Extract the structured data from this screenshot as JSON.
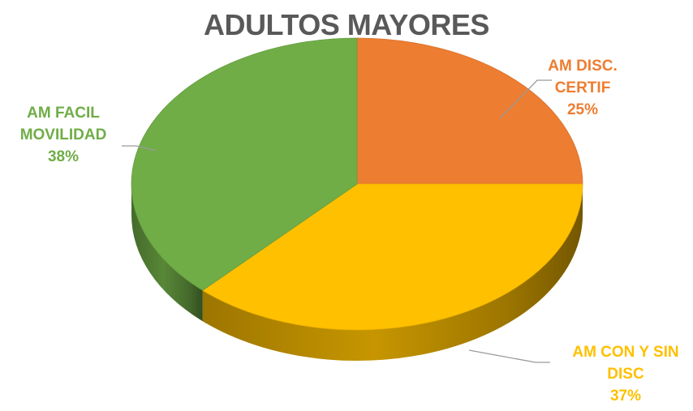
{
  "chart_data": {
    "type": "pie",
    "title": "ADULTOS MAYORES",
    "style": "3d",
    "slices": [
      {
        "label_lines": [
          "AM DISC.",
          "CERTIF"
        ],
        "percent_text": "25%",
        "value": 25,
        "color": "#ED7D31"
      },
      {
        "label_lines": [
          "AM CON Y SIN",
          "DISC"
        ],
        "percent_text": "37%",
        "value": 37,
        "color": "#FFC000"
      },
      {
        "label_lines": [
          "AM FACIL",
          "MOVILIDAD"
        ],
        "percent_text": "38%",
        "value": 38,
        "color": "#70AD47"
      }
    ]
  }
}
